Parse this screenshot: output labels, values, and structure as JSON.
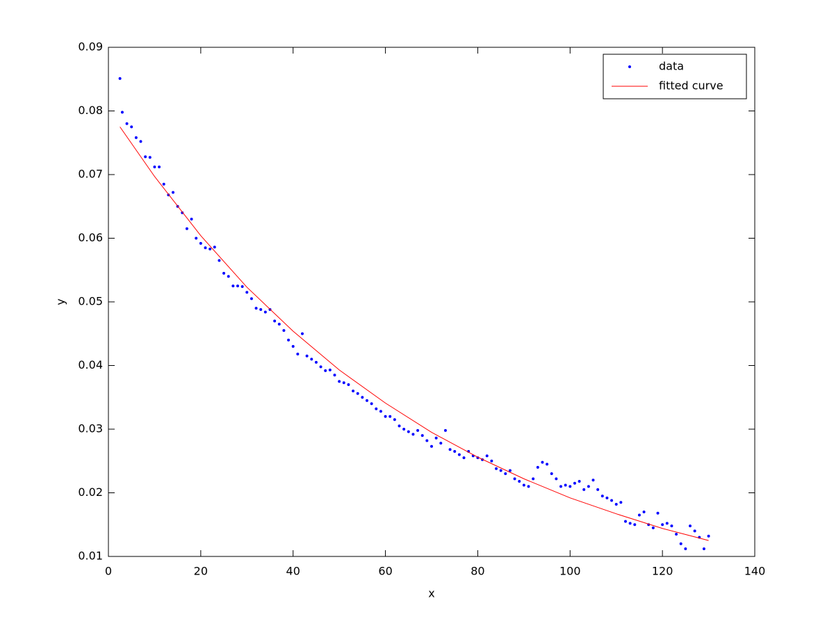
{
  "chart_data": {
    "type": "scatter",
    "xlabel": "x",
    "ylabel": "y",
    "xlim": [
      0,
      140
    ],
    "xticks": [
      0,
      20,
      40,
      60,
      80,
      100,
      120,
      140
    ],
    "ylim": [
      0.01,
      0.09
    ],
    "yticks": [
      0.01,
      0.02,
      0.03,
      0.04,
      0.05,
      0.06,
      0.07,
      0.08,
      0.09
    ],
    "legend": "top-right",
    "series": [
      {
        "name": "data",
        "type": "scatter",
        "color": "#0000ff",
        "x": [
          2.5,
          3,
          4,
          5,
          6,
          7,
          8,
          9,
          10,
          11,
          12,
          13,
          14,
          15,
          16,
          17,
          18,
          19,
          20,
          21,
          22,
          23,
          24,
          25,
          26,
          27,
          28,
          29,
          30,
          31,
          32,
          33,
          34,
          35,
          36,
          37,
          38,
          39,
          40,
          41,
          42,
          43,
          44,
          45,
          46,
          47,
          48,
          49,
          50,
          51,
          52,
          53,
          54,
          55,
          56,
          57,
          58,
          59,
          60,
          61,
          62,
          63,
          64,
          65,
          66,
          67,
          68,
          69,
          70,
          71,
          72,
          73,
          74,
          75,
          76,
          77,
          78,
          79,
          80,
          81,
          82,
          83,
          84,
          85,
          86,
          87,
          88,
          89,
          90,
          91,
          92,
          93,
          94,
          95,
          96,
          97,
          98,
          99,
          100,
          101,
          102,
          103,
          104,
          105,
          106,
          107,
          108,
          109,
          110,
          111,
          112,
          113,
          114,
          115,
          116,
          117,
          118,
          119,
          120,
          121,
          122,
          123,
          124,
          125,
          126,
          127,
          128,
          129,
          130
        ],
        "values": [
          0.0851,
          0.0798,
          0.078,
          0.0775,
          0.0758,
          0.0752,
          0.0728,
          0.0727,
          0.0712,
          0.0712,
          0.0685,
          0.0668,
          0.0672,
          0.065,
          0.064,
          0.0615,
          0.063,
          0.06,
          0.0592,
          0.0585,
          0.0583,
          0.0586,
          0.0565,
          0.0545,
          0.054,
          0.0525,
          0.0525,
          0.0524,
          0.0515,
          0.0505,
          0.049,
          0.0488,
          0.0484,
          0.0488,
          0.047,
          0.0465,
          0.0455,
          0.044,
          0.043,
          0.0418,
          0.045,
          0.0415,
          0.041,
          0.0405,
          0.0398,
          0.0392,
          0.0393,
          0.0385,
          0.0375,
          0.0373,
          0.037,
          0.036,
          0.0356,
          0.035,
          0.0345,
          0.034,
          0.0332,
          0.0328,
          0.032,
          0.032,
          0.0315,
          0.0305,
          0.03,
          0.0296,
          0.0292,
          0.0298,
          0.029,
          0.0282,
          0.0273,
          0.0286,
          0.0278,
          0.0298,
          0.0268,
          0.0265,
          0.026,
          0.0255,
          0.0265,
          0.0258,
          0.0255,
          0.0252,
          0.0258,
          0.025,
          0.0238,
          0.0235,
          0.023,
          0.0235,
          0.0222,
          0.0218,
          0.0212,
          0.021,
          0.0222,
          0.024,
          0.0248,
          0.0245,
          0.023,
          0.0222,
          0.021,
          0.0212,
          0.021,
          0.0215,
          0.0218,
          0.0205,
          0.021,
          0.022,
          0.0205,
          0.0195,
          0.0192,
          0.0188,
          0.0182,
          0.0185,
          0.0155,
          0.0152,
          0.015,
          0.0165,
          0.017,
          0.015,
          0.0145,
          0.0168,
          0.015,
          0.0152,
          0.0148,
          0.0135,
          0.012,
          0.0112,
          0.0148,
          0.014,
          0.013,
          0.0112,
          0.0132
        ]
      },
      {
        "name": "fitted curve",
        "type": "line",
        "color": "#ff0000",
        "x": [
          2.5,
          10,
          20,
          30,
          40,
          50,
          60,
          70,
          80,
          90,
          100,
          110,
          120,
          130
        ],
        "values": [
          0.0775,
          0.0697,
          0.0604,
          0.0523,
          0.0454,
          0.0393,
          0.0341,
          0.0295,
          0.0256,
          0.0222,
          0.0192,
          0.0167,
          0.0144,
          0.0125
        ]
      }
    ]
  }
}
